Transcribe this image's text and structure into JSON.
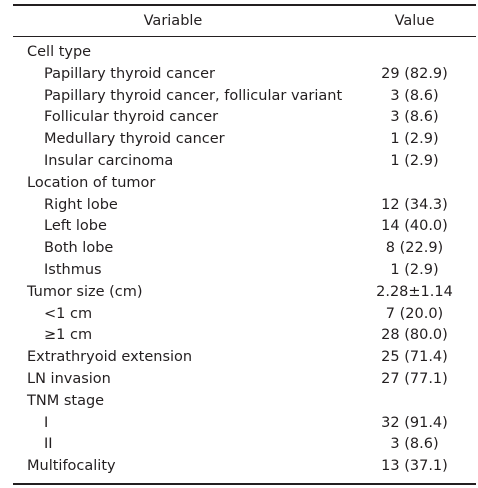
{
  "header": {
    "variable": "Variable",
    "value": "Value"
  },
  "rows": [
    {
      "label": "Cell type",
      "value": "",
      "indent": false
    },
    {
      "label": "Papillary thyroid cancer",
      "value": "29 (82.9)",
      "indent": true
    },
    {
      "label": "Papillary thyroid cancer, follicular variant",
      "value": "3 (8.6)",
      "indent": true
    },
    {
      "label": "Follicular thyroid cancer",
      "value": "3 (8.6)",
      "indent": true
    },
    {
      "label": "Medullary thyroid cancer",
      "value": "1 (2.9)",
      "indent": true
    },
    {
      "label": "Insular carcinoma",
      "value": "1 (2.9)",
      "indent": true
    },
    {
      "label": "Location of tumor",
      "value": "",
      "indent": false
    },
    {
      "label": "Right lobe",
      "value": "12 (34.3)",
      "indent": true
    },
    {
      "label": "Left lobe",
      "value": "14 (40.0)",
      "indent": true
    },
    {
      "label": "Both lobe",
      "value": "8 (22.9)",
      "indent": true
    },
    {
      "label": "Isthmus",
      "value": "1 (2.9)",
      "indent": true
    },
    {
      "label": "Tumor size (cm)",
      "value": "2.28±1.14",
      "indent": false
    },
    {
      "label": "<1 cm",
      "value": "7 (20.0)",
      "indent": true
    },
    {
      "label": "≥1 cm",
      "value": "28 (80.0)",
      "indent": true
    },
    {
      "label": "Extrathryoid extension",
      "value": "25 (71.4)",
      "indent": false
    },
    {
      "label": "LN invasion",
      "value": "27 (77.1)",
      "indent": false
    },
    {
      "label": "TNM stage",
      "value": "",
      "indent": false
    },
    {
      "label": "I",
      "value": "32 (91.4)",
      "indent": true
    },
    {
      "label": "II",
      "value": "3 (8.6)",
      "indent": true
    },
    {
      "label": "Multifocality",
      "value": "13 (37.1)",
      "indent": false
    }
  ]
}
